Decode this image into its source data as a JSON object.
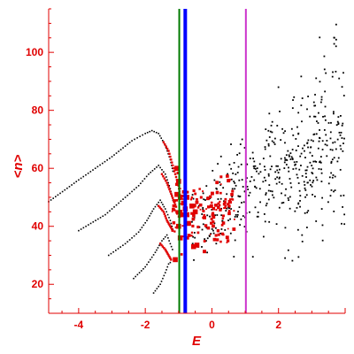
{
  "chart_data": {
    "type": "scatter",
    "title": "",
    "xlabel": "E",
    "ylabel": "<n>",
    "xlim": [
      -4.9,
      4.0
    ],
    "ylim": [
      10,
      115
    ],
    "x_ticks": [
      -4,
      -2,
      0,
      2
    ],
    "y_ticks": [
      20,
      40,
      60,
      80,
      100
    ],
    "grid": false,
    "legend": "none",
    "colors": {
      "axis": "#e00000",
      "black_points": "#000000",
      "red_points": "#e00000",
      "line_green": "#007a00",
      "line_blue": "#0000ff",
      "line_magenta": "#cc33cc"
    },
    "vertical_lines": [
      {
        "x": -0.98,
        "color": "#007a00",
        "width": 2
      },
      {
        "x": -0.8,
        "color": "#0000ff",
        "width": 4
      },
      {
        "x": 1.02,
        "color": "#cc33cc",
        "width": 2
      }
    ],
    "curves": [
      {
        "color": "#000000",
        "points": [
          [
            -4.9,
            48.5
          ],
          [
            -4.0,
            56
          ],
          [
            -3.0,
            64
          ],
          [
            -2.4,
            69.5
          ],
          [
            -2.0,
            72
          ],
          [
            -1.8,
            73
          ],
          [
            -1.6,
            72
          ],
          [
            -1.4,
            68
          ],
          [
            -1.25,
            63
          ],
          [
            -1.15,
            58
          ]
        ]
      },
      {
        "color": "#000000",
        "points": [
          [
            -4.0,
            38.5
          ],
          [
            -3.2,
            44
          ],
          [
            -2.6,
            50
          ],
          [
            -2.2,
            54
          ],
          [
            -1.9,
            58
          ],
          [
            -1.6,
            61
          ],
          [
            -1.4,
            58
          ],
          [
            -1.25,
            53
          ],
          [
            -1.15,
            48
          ]
        ]
      },
      {
        "color": "#000000",
        "points": [
          [
            -3.1,
            30
          ],
          [
            -2.6,
            34
          ],
          [
            -2.2,
            38
          ],
          [
            -1.95,
            42
          ],
          [
            -1.75,
            46
          ],
          [
            -1.55,
            49
          ],
          [
            -1.4,
            46
          ],
          [
            -1.25,
            42
          ],
          [
            -1.15,
            38
          ]
        ]
      },
      {
        "color": "#000000",
        "points": [
          [
            -2.35,
            22
          ],
          [
            -2.0,
            26
          ],
          [
            -1.7,
            31
          ],
          [
            -1.5,
            35
          ],
          [
            -1.35,
            37
          ],
          [
            -1.25,
            34
          ],
          [
            -1.15,
            31
          ]
        ]
      },
      {
        "color": "#000000",
        "points": [
          [
            -1.75,
            17
          ],
          [
            -1.55,
            20
          ],
          [
            -1.4,
            24
          ],
          [
            -1.3,
            27
          ],
          [
            -1.2,
            28
          ]
        ]
      }
    ],
    "red_curves": [
      {
        "points": [
          [
            -1.45,
            69
          ],
          [
            -1.3,
            66
          ],
          [
            -1.2,
            62
          ],
          [
            -1.1,
            58
          ],
          [
            -1.0,
            54
          ],
          [
            -0.95,
            50
          ]
        ]
      },
      {
        "points": [
          [
            -1.5,
            58
          ],
          [
            -1.35,
            55
          ],
          [
            -1.25,
            52
          ],
          [
            -1.15,
            49
          ],
          [
            -1.05,
            46
          ]
        ]
      },
      {
        "points": [
          [
            -1.6,
            47
          ],
          [
            -1.45,
            45
          ],
          [
            -1.35,
            42
          ],
          [
            -1.25,
            40
          ],
          [
            -1.15,
            38
          ]
        ]
      },
      {
        "points": [
          [
            -1.55,
            34
          ],
          [
            -1.4,
            32
          ],
          [
            -1.3,
            30
          ],
          [
            -1.2,
            28
          ]
        ]
      }
    ],
    "red_big_points": [
      [
        -1.05,
        60
      ],
      [
        -1.0,
        55.5
      ],
      [
        -1.05,
        51
      ],
      [
        -0.95,
        50
      ],
      [
        -0.85,
        48
      ],
      [
        -0.8,
        46
      ],
      [
        -0.75,
        44
      ],
      [
        -0.9,
        44
      ],
      [
        -0.7,
        41
      ],
      [
        -1.0,
        40
      ],
      [
        -0.95,
        36
      ],
      [
        -0.55,
        33
      ],
      [
        -0.45,
        33.5
      ],
      [
        -1.1,
        28.5
      ],
      [
        -0.75,
        50
      ],
      [
        -0.6,
        47
      ],
      [
        -0.5,
        45
      ]
    ],
    "black_cloud_seed": 7,
    "black_cloud_count": 480,
    "red_cloud_count": 140
  }
}
